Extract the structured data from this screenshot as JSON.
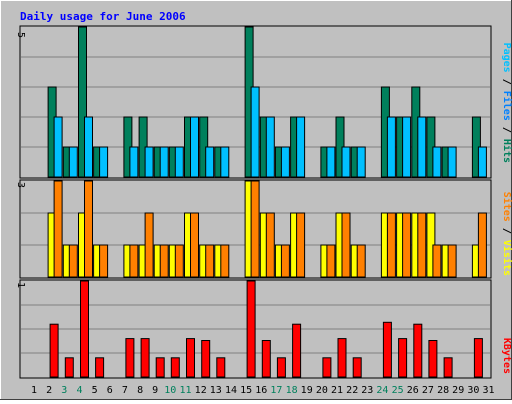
{
  "chart_data": [
    {
      "type": "bar",
      "panel": "top",
      "title": "Daily usage for June 2006",
      "legend": [
        "Pages",
        "Files",
        "Hits"
      ],
      "legend_separator": " / ",
      "y_tick_label": "5",
      "ylim": [
        0,
        5
      ],
      "grid": true,
      "days": [
        "1",
        "2",
        "3",
        "4",
        "5",
        "6",
        "7",
        "8",
        "9",
        "10",
        "11",
        "12",
        "13",
        "14",
        "15",
        "16",
        "17",
        "18",
        "19",
        "20",
        "21",
        "22",
        "23",
        "24",
        "25",
        "26",
        "27",
        "28",
        "29",
        "30",
        "31"
      ],
      "weekend_days": [
        "3",
        "4",
        "10",
        "11",
        "17",
        "18",
        "24",
        "25"
      ],
      "series": [
        {
          "name": "Hits",
          "values": [
            0,
            3,
            1,
            5,
            1,
            0,
            2,
            2,
            1,
            1,
            2,
            2,
            1,
            0,
            5,
            2,
            1,
            2,
            0,
            1,
            2,
            1,
            0,
            3,
            2,
            3,
            2,
            1,
            0,
            2,
            0
          ]
        },
        {
          "name": "Files",
          "values": [
            0,
            2,
            1,
            2,
            1,
            0,
            1,
            1,
            1,
            1,
            2,
            1,
            1,
            0,
            3,
            2,
            1,
            2,
            0,
            1,
            1,
            1,
            0,
            2,
            2,
            2,
            1,
            1,
            0,
            1,
            0
          ]
        }
      ]
    },
    {
      "type": "bar",
      "panel": "middle",
      "legend": [
        "Sites",
        "Visits"
      ],
      "legend_separator": " / ",
      "y_tick_label": "3",
      "ylim": [
        0,
        3
      ],
      "grid": true,
      "series": [
        {
          "name": "Visits",
          "values": [
            0,
            2,
            1,
            2,
            1,
            0,
            1,
            1,
            1,
            1,
            2,
            1,
            1,
            0,
            3,
            2,
            1,
            2,
            0,
            1,
            2,
            1,
            0,
            2,
            2,
            2,
            2,
            1,
            0,
            1,
            0
          ]
        },
        {
          "name": "Sites",
          "values": [
            0,
            3,
            1,
            3,
            1,
            0,
            1,
            2,
            1,
            1,
            2,
            1,
            1,
            0,
            3,
            2,
            1,
            2,
            0,
            1,
            2,
            1,
            0,
            2,
            2,
            2,
            1,
            1,
            0,
            2,
            0
          ]
        }
      ]
    },
    {
      "type": "bar",
      "panel": "bottom",
      "legend": [
        "KBytes"
      ],
      "y_tick_label": "1",
      "ylim": [
        0,
        1
      ],
      "grid": true,
      "series": [
        {
          "name": "KBytes",
          "values": [
            0,
            0.55,
            0.2,
            1.0,
            0.2,
            0,
            0.4,
            0.4,
            0.2,
            0.2,
            0.4,
            0.38,
            0.2,
            0,
            1.0,
            0.38,
            0.2,
            0.55,
            0,
            0.2,
            0.4,
            0.2,
            0,
            0.57,
            0.4,
            0.55,
            0.38,
            0.2,
            0,
            0.4,
            0
          ]
        }
      ]
    }
  ],
  "colors": {
    "background": "#c0c0c0",
    "title": "#0000ff",
    "hits": "#00805c",
    "files": "#0080ff",
    "files_bar": "#00c0ff",
    "pages": "#00c0ff",
    "visits": "#ffff00",
    "sites": "#ff8000",
    "kbytes": "#ff0000",
    "weekend_label": "#00805c",
    "weekday_label": "#000000",
    "grid": "#808080"
  }
}
